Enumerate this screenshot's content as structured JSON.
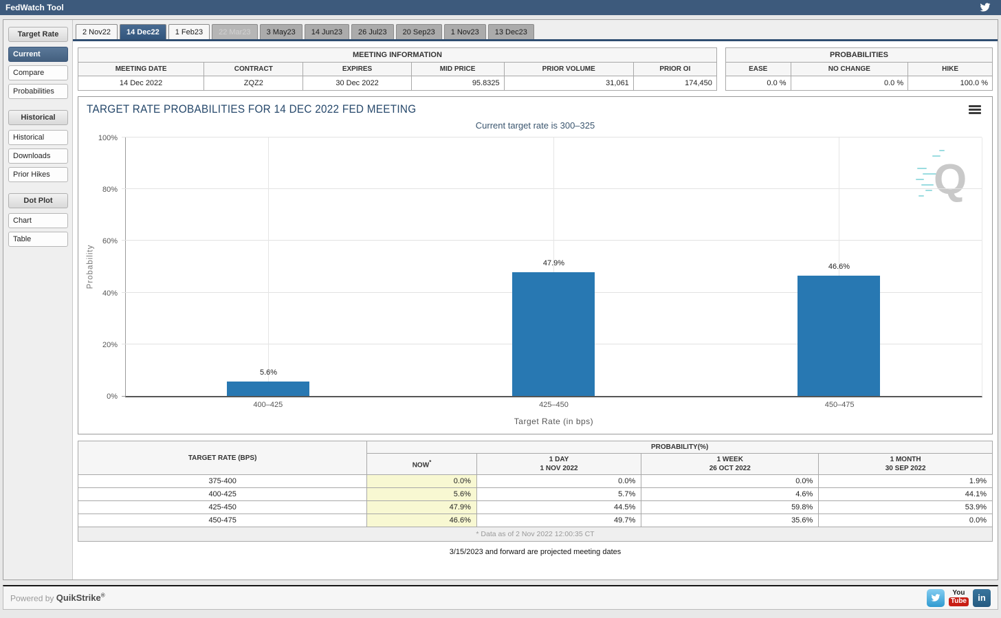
{
  "app": {
    "title": "FedWatch Tool"
  },
  "colors": {
    "header_bar": "#3d5a7c",
    "accent_selected": "#33567d",
    "bar_blue": "#2878b2",
    "now_column_highlight": "#f8f8d2",
    "twitter_blue": "#45a8dd",
    "youtube_red": "#c81e14",
    "linkedin_blue": "#2d6a93"
  },
  "sidebar": {
    "sections": [
      {
        "header": "Target Rate",
        "items": [
          {
            "label": "Current",
            "selected": true
          },
          {
            "label": "Compare",
            "selected": false
          },
          {
            "label": "Probabilities",
            "selected": false
          }
        ]
      },
      {
        "header": "Historical",
        "items": [
          {
            "label": "Historical",
            "selected": false
          },
          {
            "label": "Downloads",
            "selected": false
          },
          {
            "label": "Prior Hikes",
            "selected": false
          }
        ]
      },
      {
        "header": "Dot Plot",
        "items": [
          {
            "label": "Chart",
            "selected": false
          },
          {
            "label": "Table",
            "selected": false
          }
        ]
      }
    ]
  },
  "tabs": [
    {
      "label": "2 Nov22",
      "state": "light"
    },
    {
      "label": "14 Dec22",
      "state": "selected"
    },
    {
      "label": "1 Feb23",
      "state": "light"
    },
    {
      "label": "22 Mar23",
      "state": "disabled"
    },
    {
      "label": "3 May23",
      "state": "normal"
    },
    {
      "label": "14 Jun23",
      "state": "normal"
    },
    {
      "label": "26 Jul23",
      "state": "normal"
    },
    {
      "label": "20 Sep23",
      "state": "normal"
    },
    {
      "label": "1 Nov23",
      "state": "normal"
    },
    {
      "label": "13 Dec23",
      "state": "normal"
    }
  ],
  "meeting_information": {
    "title": "MEETING INFORMATION",
    "columns": [
      {
        "label": "MEETING DATE",
        "value": "14 Dec 2022",
        "align": "center"
      },
      {
        "label": "CONTRACT",
        "value": "ZQZ2",
        "align": "center"
      },
      {
        "label": "EXPIRES",
        "value": "30 Dec 2022",
        "align": "center"
      },
      {
        "label": "MID PRICE",
        "value": "95.8325",
        "align": "right"
      },
      {
        "label": "PRIOR VOLUME",
        "value": "31,061",
        "align": "right"
      },
      {
        "label": "PRIOR OI",
        "value": "174,450",
        "align": "right"
      }
    ]
  },
  "probabilities_summary": {
    "title": "PROBABILITIES",
    "columns": [
      {
        "label": "EASE",
        "value": "0.0 %",
        "align": "right"
      },
      {
        "label": "NO CHANGE",
        "value": "0.0 %",
        "align": "right"
      },
      {
        "label": "HIKE",
        "value": "100.0 %",
        "align": "right"
      }
    ]
  },
  "chart": {
    "menu_icon": "hamburger-icon",
    "watermark_letter": "Q"
  },
  "chart_data": {
    "type": "bar",
    "title": "TARGET RATE PROBABILITIES FOR 14 DEC 2022 FED MEETING",
    "subtitle": "Current target rate is 300–325",
    "categories": [
      "400–425",
      "425–450",
      "450–475"
    ],
    "values": [
      5.6,
      47.9,
      46.6
    ],
    "value_labels": [
      "5.6%",
      "47.9%",
      "46.6%"
    ],
    "xlabel": "Target Rate (in bps)",
    "ylabel": "Probability",
    "ylim": [
      0,
      100
    ],
    "yticks": [
      0,
      20,
      40,
      60,
      80,
      100
    ],
    "ytick_labels": [
      "0%",
      "20%",
      "40%",
      "60%",
      "80%",
      "100%"
    ],
    "grid": true,
    "legend": false,
    "bar_color": "#2878b2"
  },
  "probability_table": {
    "corner_header": "TARGET RATE (BPS)",
    "group_header": "PROBABILITY(%)",
    "columns": [
      {
        "label": "NOW",
        "superscript": "*",
        "sub": ""
      },
      {
        "label": "1 DAY",
        "sub": "1 NOV 2022"
      },
      {
        "label": "1 WEEK",
        "sub": "26 OCT 2022"
      },
      {
        "label": "1 MONTH",
        "sub": "30 SEP 2022"
      }
    ],
    "rows": [
      {
        "range": "375-400",
        "values": [
          "0.0%",
          "0.0%",
          "0.0%",
          "1.9%"
        ]
      },
      {
        "range": "400-425",
        "values": [
          "5.6%",
          "5.7%",
          "4.6%",
          "44.1%"
        ]
      },
      {
        "range": "425-450",
        "values": [
          "47.9%",
          "44.5%",
          "59.8%",
          "53.9%"
        ]
      },
      {
        "range": "450-475",
        "values": [
          "46.6%",
          "49.7%",
          "35.6%",
          "0.0%"
        ]
      }
    ],
    "footnote": "* Data as of 2 Nov 2022 12:00:35 CT"
  },
  "notes": {
    "projected": "3/15/2023 and forward are projected meeting dates"
  },
  "footer": {
    "powered_by": "Powered by",
    "brand": "QuikStrike",
    "registered_mark": "®",
    "social": {
      "youtube_line1": "You",
      "youtube_line2": "Tube",
      "linkedin_label": "in"
    }
  }
}
